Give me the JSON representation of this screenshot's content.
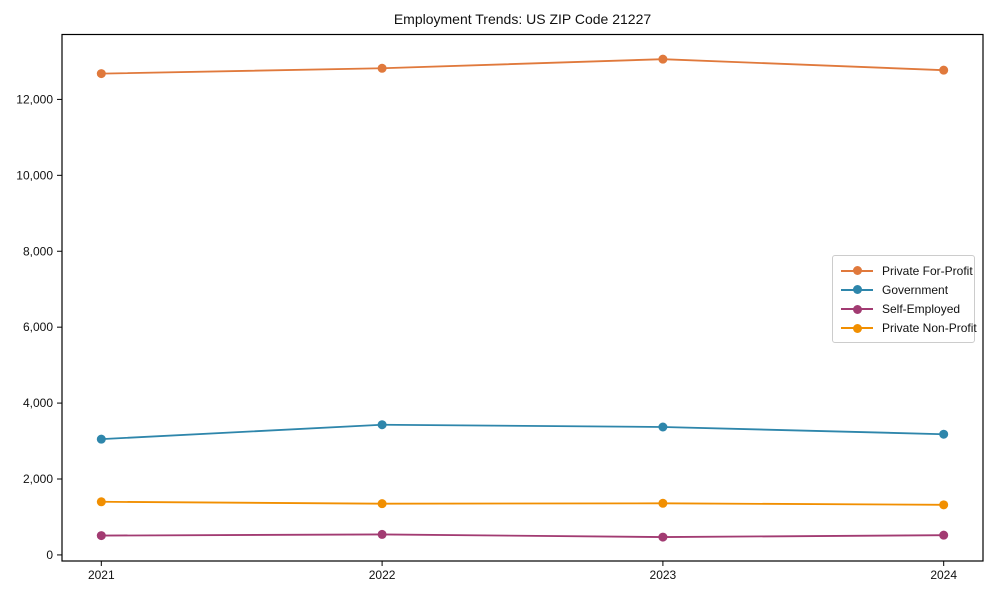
{
  "chart_data": {
    "type": "line",
    "title": "Employment Trends: US ZIP Code 21227",
    "x": [
      2021,
      2022,
      2023,
      2024
    ],
    "xtick_labels": [
      "2021",
      "2022",
      "2023",
      "2024"
    ],
    "yticks": [
      0,
      2000,
      4000,
      6000,
      8000,
      10000,
      12000
    ],
    "ytick_labels": [
      "0",
      "2,000",
      "4,000",
      "6,000",
      "8,000",
      "10,000",
      "12,000"
    ],
    "xlim": [
      2020.86,
      2024.14
    ],
    "ylim": [
      -160,
      13710
    ],
    "grid": false,
    "legend_position": "center-right",
    "series": [
      {
        "name": "Private For-Profit",
        "color": "#E0793C",
        "values": [
          12680,
          12820,
          13060,
          12770
        ]
      },
      {
        "name": "Government",
        "color": "#2E86AB",
        "values": [
          3050,
          3430,
          3370,
          3180
        ]
      },
      {
        "name": "Self-Employed",
        "color": "#A23B72",
        "values": [
          510,
          540,
          470,
          520
        ]
      },
      {
        "name": "Private Non-Profit",
        "color": "#F18F01",
        "values": [
          1400,
          1350,
          1360,
          1320
        ]
      }
    ],
    "colors": {
      "axis": "#000000",
      "text": "#111111",
      "legend_border": "#cccccc"
    }
  }
}
